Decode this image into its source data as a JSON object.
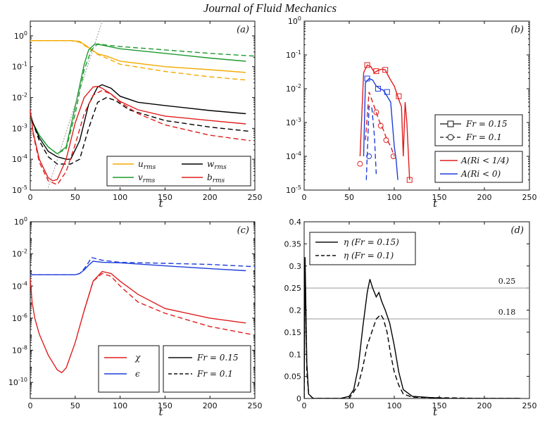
{
  "header": {
    "title": "Journal of Fluid Mechanics"
  },
  "chart_data": [
    {
      "panel": "(a)",
      "type": "line",
      "xlabel": "t",
      "xlim": [
        0,
        250
      ],
      "ylim": [
        1e-05,
        3
      ],
      "yscale": "log",
      "xticks": [
        0,
        50,
        100,
        150,
        200,
        250
      ],
      "yticks": [
        {
          "base": "10",
          "exp": "-5"
        },
        {
          "base": "10",
          "exp": "-4"
        },
        {
          "base": "10",
          "exp": "-3"
        },
        {
          "base": "10",
          "exp": "-2"
        },
        {
          "base": "10",
          "exp": "-1"
        },
        {
          "base": "10",
          "exp": "0"
        }
      ],
      "legend": [
        {
          "main": "u",
          "sub": "rms",
          "color": "#f2a900"
        },
        {
          "main": "w",
          "sub": "rms",
          "color": "#000000"
        },
        {
          "main": "v",
          "sub": "rms",
          "color": "#1e9a2f"
        },
        {
          "main": "b",
          "sub": "rms",
          "color": "#e01e1e"
        }
      ],
      "legend_position": "bottom-right",
      "series": [
        {
          "color": "#f2a900",
          "style": "solid",
          "x": [
            0,
            30,
            45,
            55,
            65,
            75,
            85,
            100,
            150,
            200,
            240
          ],
          "y": [
            0.7,
            0.7,
            0.7,
            0.66,
            0.42,
            0.26,
            0.22,
            0.15,
            0.1,
            0.08,
            0.065
          ]
        },
        {
          "color": "#f2a900",
          "style": "dashed",
          "x": [
            0,
            45,
            55,
            65,
            75,
            85,
            100,
            150,
            200,
            240
          ],
          "y": [
            0.7,
            0.7,
            0.62,
            0.4,
            0.25,
            0.19,
            0.12,
            0.07,
            0.047,
            0.037
          ]
        },
        {
          "color": "#1e9a2f",
          "style": "solid",
          "x": [
            0,
            3,
            10,
            20,
            30,
            40,
            50,
            60,
            65,
            72,
            80,
            100,
            150,
            200,
            240
          ],
          "y": [
            0.002,
            0.0015,
            0.0006,
            0.00025,
            0.00015,
            0.00025,
            0.005,
            0.12,
            0.35,
            0.55,
            0.5,
            0.38,
            0.27,
            0.19,
            0.15
          ]
        },
        {
          "color": "#1e9a2f",
          "style": "dashed",
          "x": [
            0,
            3,
            10,
            20,
            30,
            40,
            50,
            60,
            68,
            75,
            85,
            100,
            150,
            200,
            250
          ],
          "y": [
            0.002,
            0.0015,
            0.0006,
            0.00025,
            0.00015,
            0.00022,
            0.003,
            0.08,
            0.35,
            0.55,
            0.5,
            0.45,
            0.35,
            0.27,
            0.22
          ]
        },
        {
          "color": "#000000",
          "style": "solid",
          "x": [
            0,
            3,
            10,
            20,
            30,
            40,
            45,
            55,
            65,
            75,
            80,
            90,
            100,
            120,
            150,
            200,
            240
          ],
          "y": [
            0.003,
            0.0015,
            0.0005,
            0.00018,
            0.00012,
            0.0001,
            0.0001,
            0.0004,
            0.006,
            0.022,
            0.026,
            0.02,
            0.011,
            0.007,
            0.0055,
            0.0038,
            0.003
          ]
        },
        {
          "color": "#000000",
          "style": "dashed",
          "x": [
            0,
            3,
            10,
            20,
            30,
            45,
            55,
            65,
            75,
            85,
            95,
            110,
            150,
            200,
            245
          ],
          "y": [
            0.003,
            0.0015,
            0.0004,
            0.00012,
            7e-05,
            7e-05,
            0.0001,
            0.001,
            0.007,
            0.01,
            0.008,
            0.004,
            0.0018,
            0.0011,
            0.0008
          ]
        },
        {
          "color": "#e01e1e",
          "style": "solid",
          "x": [
            0,
            3,
            10,
            20,
            25,
            30,
            40,
            50,
            60,
            70,
            75,
            80,
            90,
            100,
            120,
            150,
            200,
            240
          ],
          "y": [
            0.004,
            0.0008,
            0.0001,
            2.5e-05,
            2e-05,
            2.2e-05,
            0.0001,
            0.0015,
            0.01,
            0.022,
            0.023,
            0.02,
            0.013,
            0.0075,
            0.004,
            0.0025,
            0.0018,
            0.0014
          ]
        },
        {
          "color": "#e01e1e",
          "style": "dashed",
          "x": [
            0,
            3,
            10,
            20,
            30,
            40,
            50,
            60,
            70,
            80,
            90,
            100,
            120,
            150,
            200,
            245
          ],
          "y": [
            0.004,
            0.0007,
            8e-05,
            2e-05,
            1.5e-05,
            4e-05,
            0.0003,
            0.003,
            0.012,
            0.017,
            0.013,
            0.007,
            0.003,
            0.0013,
            0.0006,
            0.0004
          ]
        },
        {
          "color": "#888888",
          "style": "dotted",
          "x": [
            20,
            80
          ],
          "y": [
            1.2e-05,
            3
          ]
        }
      ]
    },
    {
      "panel": "(b)",
      "type": "line",
      "xlabel": "t",
      "xlim": [
        0,
        250
      ],
      "ylim": [
        1e-05,
        1
      ],
      "yscale": "log",
      "xticks": [
        0,
        50,
        100,
        150,
        200,
        250
      ],
      "yticks": [
        {
          "base": "10",
          "exp": "-5"
        },
        {
          "base": "10",
          "exp": "-4"
        },
        {
          "base": "10",
          "exp": "-3"
        },
        {
          "base": "10",
          "exp": "-2"
        },
        {
          "base": "10",
          "exp": "-1"
        },
        {
          "base": "10",
          "exp": "0"
        }
      ],
      "legend_top": [
        {
          "label": "Fr = 0.15",
          "marker": "square",
          "style": "solid"
        },
        {
          "label": "Fr = 0.1",
          "marker": "circle",
          "style": "dashed"
        }
      ],
      "legend_bottom": [
        {
          "label": "A(Ri < 1/4)",
          "color": "#e01e1e"
        },
        {
          "label": "A(Ri < 0)",
          "color": "#1e3ddb"
        }
      ],
      "series": [
        {
          "color": "#e01e1e",
          "style": "solid",
          "marker": "square",
          "x": [
            62,
            66,
            70,
            74,
            78,
            82,
            86,
            90,
            95,
            100,
            103,
            106,
            108,
            110,
            112,
            114,
            117
          ],
          "y": [
            0.0001,
            0.03,
            0.05,
            0.045,
            0.03,
            0.035,
            0.038,
            0.036,
            0.02,
            0.012,
            0.007,
            0.004,
            0.003,
            0.0001,
            0.004,
            0.001,
            2e-05
          ],
          "marker_x": [
            70,
            80,
            90,
            105,
            117
          ],
          "marker_y": [
            0.05,
            0.033,
            0.036,
            0.006,
            2e-05
          ]
        },
        {
          "color": "#e01e1e",
          "style": "dashed",
          "marker": "circle",
          "x": [
            68,
            72,
            76,
            80,
            84,
            88,
            92,
            96,
            100
          ],
          "y": [
            0.0003,
            0.008,
            0.004,
            0.002,
            0.001,
            0.0006,
            0.0003,
            0.0002,
            0.0001
          ],
          "marker_x": [
            62,
            80,
            85,
            91,
            99
          ],
          "marker_y": [
            6e-05,
            0.002,
            0.0008,
            0.0003,
            0.0001
          ]
        },
        {
          "color": "#1e3ddb",
          "style": "solid",
          "marker": "square",
          "x": [
            66,
            68,
            72,
            76,
            80,
            84,
            88,
            92,
            96,
            100,
            102,
            104
          ],
          "y": [
            0.0001,
            0.015,
            0.02,
            0.018,
            0.012,
            0.01,
            0.009,
            0.006,
            0.004,
            0.0002,
            8e-05,
            2e-05
          ],
          "marker_x": [
            70,
            82,
            92
          ],
          "marker_y": [
            0.02,
            0.01,
            0.008
          ]
        },
        {
          "color": "#1e3ddb",
          "style": "dashed",
          "marker": "circle",
          "x": [
            69,
            72,
            75,
            78,
            80
          ],
          "y": [
            2e-05,
            0.003,
            0.003,
            0.0004,
            3e-05
          ],
          "marker_x": [
            72
          ],
          "marker_y": [
            0.0001
          ]
        }
      ]
    },
    {
      "panel": "(c)",
      "type": "line",
      "xlabel": "t",
      "xlim": [
        0,
        250
      ],
      "ylim": [
        1e-11,
        1
      ],
      "yscale": "log",
      "xticks": [
        0,
        50,
        100,
        150,
        200,
        250
      ],
      "yticks": [
        {
          "base": "10",
          "exp": "-10"
        },
        {
          "base": "10",
          "exp": "-8"
        },
        {
          "base": "10",
          "exp": "-6"
        },
        {
          "base": "10",
          "exp": "-4"
        },
        {
          "base": "10",
          "exp": "-2"
        },
        {
          "base": "10",
          "exp": "0"
        }
      ],
      "legend_left": [
        {
          "label": "χ",
          "color": "#e01e1e"
        },
        {
          "label": "ϵ",
          "color": "#1e3ddb"
        }
      ],
      "legend_right": [
        {
          "label": "Fr = 0.15",
          "style": "solid"
        },
        {
          "label": "Fr = 0.1",
          "style": "dashed"
        }
      ],
      "series": [
        {
          "color": "#1e3ddb",
          "style": "solid",
          "x": [
            0,
            5,
            50,
            55,
            60,
            65,
            70,
            80,
            100,
            150,
            200,
            240
          ],
          "y": [
            0.0005,
            0.0005,
            0.0005,
            0.0006,
            0.001,
            0.002,
            0.0035,
            0.003,
            0.0028,
            0.0018,
            0.0012,
            0.0009
          ]
        },
        {
          "color": "#1e3ddb",
          "style": "dashed",
          "x": [
            0,
            5,
            50,
            55,
            60,
            65,
            68,
            80,
            100,
            150,
            200,
            250
          ],
          "y": [
            0.0005,
            0.0005,
            0.0005,
            0.0006,
            0.0012,
            0.003,
            0.006,
            0.004,
            0.003,
            0.0026,
            0.0022,
            0.0016
          ]
        },
        {
          "color": "#e01e1e",
          "style": "solid",
          "x": [
            0,
            2,
            5,
            10,
            20,
            30,
            35,
            40,
            50,
            60,
            70,
            80,
            90,
            100,
            120,
            150,
            200,
            240
          ],
          "y": [
            0.0003,
            1e-05,
            1e-06,
            1e-07,
            5e-09,
            6e-10,
            4e-10,
            8e-10,
            3e-08,
            3e-06,
            0.0002,
            0.0008,
            0.0006,
            0.0002,
            3e-05,
            4e-06,
            1e-06,
            5e-07
          ]
        },
        {
          "color": "#e01e1e",
          "style": "dashed",
          "x": [
            60,
            70,
            80,
            90,
            100,
            120,
            150,
            200,
            245
          ],
          "y": [
            3e-06,
            0.0002,
            0.0006,
            0.0004,
            0.0001,
            1e-05,
            2e-06,
            3e-07,
            1e-07
          ]
        }
      ]
    },
    {
      "panel": "(d)",
      "type": "line",
      "xlabel": "t",
      "xlim": [
        0,
        250
      ],
      "ylim": [
        0,
        0.4
      ],
      "yscale": "linear",
      "xticks": [
        0,
        50,
        100,
        150,
        200,
        250
      ],
      "yticks": [
        0,
        0.05,
        0.1,
        0.15,
        0.2,
        0.25,
        0.3,
        0.35,
        0.4
      ],
      "ytick_labels": [
        "0",
        "0.05",
        "0.1",
        "0.15",
        "0.2",
        "0.25",
        "0.3",
        "0.35",
        "0.4"
      ],
      "reference_lines": [
        {
          "y": 0.25,
          "label": "0.25"
        },
        {
          "y": 0.18,
          "label": "0.18"
        }
      ],
      "legend": [
        {
          "label": "η (Fr = 0.15)",
          "style": "solid"
        },
        {
          "label": "η (Fr = 0.1)",
          "style": "dashed"
        }
      ],
      "series": [
        {
          "color": "#000000",
          "style": "solid",
          "x": [
            0,
            1,
            3,
            5,
            10,
            40,
            50,
            55,
            60,
            65,
            70,
            73,
            76,
            80,
            83,
            86,
            90,
            95,
            100,
            105,
            110,
            120,
            140,
            160,
            200,
            240
          ],
          "y": [
            0,
            0.32,
            0.08,
            0.01,
            0,
            0,
            0.005,
            0.02,
            0.07,
            0.16,
            0.24,
            0.27,
            0.25,
            0.23,
            0.24,
            0.22,
            0.2,
            0.17,
            0.12,
            0.06,
            0.02,
            0.005,
            0.002,
            0,
            0,
            0
          ]
        },
        {
          "color": "#000000",
          "style": "dashed",
          "x": [
            0,
            1,
            3,
            5,
            10,
            50,
            60,
            65,
            70,
            75,
            80,
            85,
            88,
            92,
            96,
            100,
            105,
            110,
            120,
            140,
            200,
            240
          ],
          "y": [
            0,
            0.3,
            0.06,
            0.01,
            0,
            0,
            0.03,
            0.07,
            0.12,
            0.15,
            0.18,
            0.19,
            0.18,
            0.15,
            0.1,
            0.06,
            0.03,
            0.01,
            0.003,
            0.002,
            0,
            0
          ]
        }
      ]
    }
  ]
}
